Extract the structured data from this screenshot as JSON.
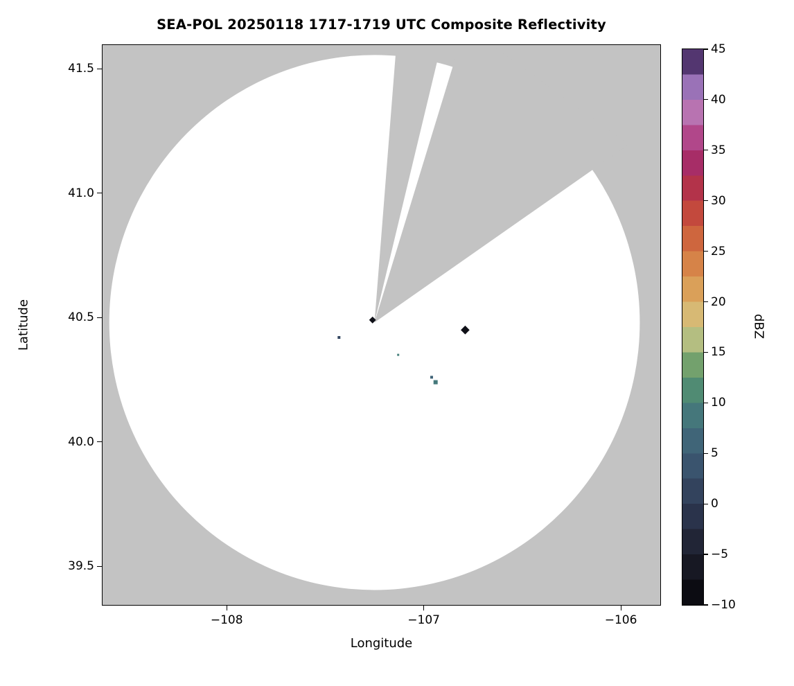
{
  "title": "SEA-POL 20250118 1717-1719 UTC Composite Reflectivity",
  "chart_data": {
    "type": "heatmap",
    "title": "SEA-POL 20250118 1717-1719 UTC Composite Reflectivity",
    "xlabel": "Longitude",
    "ylabel": "Latitude",
    "xlim": [
      -108.63,
      -105.8
    ],
    "ylim": [
      39.345,
      41.595
    ],
    "grid": false,
    "x_ticks": [
      {
        "v": -108,
        "label": "−108"
      },
      {
        "v": -107,
        "label": "−107"
      },
      {
        "v": -106,
        "label": "−106"
      }
    ],
    "y_ticks": [
      {
        "v": 41.5,
        "label": "41.5"
      },
      {
        "v": 41.0,
        "label": "41.0"
      },
      {
        "v": 40.5,
        "label": "40.5"
      },
      {
        "v": 40.0,
        "label": "40.0"
      },
      {
        "v": 39.5,
        "label": "39.5"
      }
    ],
    "radar": {
      "center": [
        -107.25,
        40.48
      ],
      "range_lon_deg": 1.346,
      "range_lat_deg": 1.075
    },
    "blocked_sectors_deg": [
      [
        4.5,
        13.5
      ],
      [
        17.0,
        55.0
      ]
    ],
    "echoes": [
      {
        "lon": -107.26,
        "lat": 40.49,
        "dbz": -8,
        "size": 7,
        "shape": "diamond"
      },
      {
        "lon": -106.79,
        "lat": 40.45,
        "dbz": -8,
        "size": 9,
        "shape": "diamond"
      },
      {
        "lon": -106.94,
        "lat": 40.24,
        "dbz": 9,
        "size": 6,
        "shape": "square"
      },
      {
        "lon": -106.96,
        "lat": 40.26,
        "dbz": 6,
        "size": 4,
        "shape": "square"
      },
      {
        "lon": -107.43,
        "lat": 40.42,
        "dbz": 2,
        "size": 4,
        "shape": "square"
      },
      {
        "lon": -107.13,
        "lat": 40.35,
        "dbz": 10,
        "size": 3,
        "shape": "square"
      }
    ],
    "colors": {
      "out_of_range": "#c3c3c3",
      "coverage": "#ffffff",
      "frame": "#000000"
    },
    "colorbar": {
      "label": "dBZ",
      "min": -10,
      "max": 45,
      "segments": 22,
      "ticks": [
        {
          "v": 45,
          "label": "45"
        },
        {
          "v": 40,
          "label": "40"
        },
        {
          "v": 35,
          "label": "35"
        },
        {
          "v": 30,
          "label": "30"
        },
        {
          "v": 25,
          "label": "25"
        },
        {
          "v": 20,
          "label": "20"
        },
        {
          "v": 15,
          "label": "15"
        },
        {
          "v": 10,
          "label": "10"
        },
        {
          "v": 5,
          "label": "5"
        },
        {
          "v": 0,
          "label": "0"
        },
        {
          "v": -5,
          "label": "−5"
        },
        {
          "v": -10,
          "label": "−10"
        }
      ],
      "stops": [
        {
          "v": -10,
          "c": "#060609"
        },
        {
          "v": -5,
          "c": "#1c1e2b"
        },
        {
          "v": 0,
          "c": "#2f3a55"
        },
        {
          "v": 5,
          "c": "#3d5c76"
        },
        {
          "v": 10,
          "c": "#47807c"
        },
        {
          "v": 12,
          "c": "#55926e"
        },
        {
          "v": 15,
          "c": "#88ac6c"
        },
        {
          "v": 17,
          "c": "#cfc98d"
        },
        {
          "v": 20,
          "c": "#dcae62"
        },
        {
          "v": 25,
          "c": "#d4743f"
        },
        {
          "v": 30,
          "c": "#bd3a3c"
        },
        {
          "v": 33,
          "c": "#a52a5e"
        },
        {
          "v": 35,
          "c": "#aa3376"
        },
        {
          "v": 38,
          "c": "#bb64a5"
        },
        {
          "v": 40,
          "c": "#b48cc6"
        },
        {
          "v": 42,
          "c": "#8a62ae"
        },
        {
          "v": 45,
          "c": "#2c1643"
        }
      ]
    }
  }
}
